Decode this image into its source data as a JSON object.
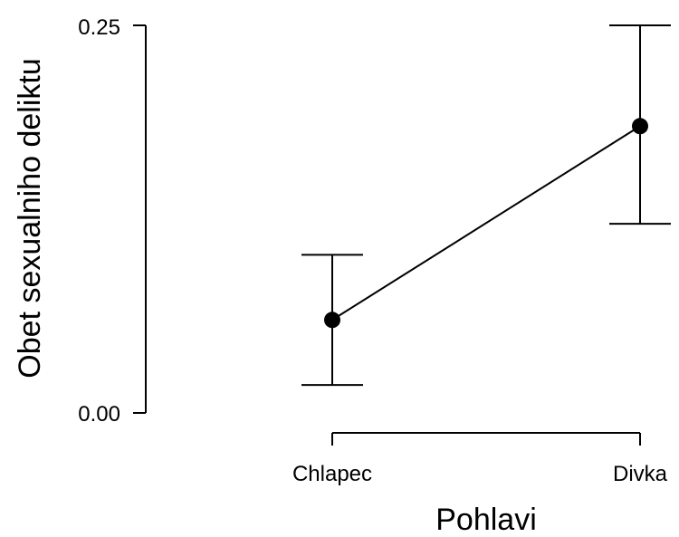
{
  "chart_data": {
    "type": "line",
    "categories": [
      "Chlapec",
      "Divka"
    ],
    "series": [
      {
        "values": [
          0.06,
          0.185
        ],
        "ci_lower": [
          0.018,
          0.122
        ],
        "ci_upper": [
          0.102,
          0.25
        ]
      }
    ],
    "xlabel": "Pohlavi",
    "ylabel": "Obet sexualniho deliktu",
    "ylim": [
      0,
      0.25
    ],
    "yticks": [
      0,
      0.25
    ],
    "ytick_labels": [
      "0.00",
      "0.25"
    ],
    "grid": false,
    "legend": "none"
  }
}
